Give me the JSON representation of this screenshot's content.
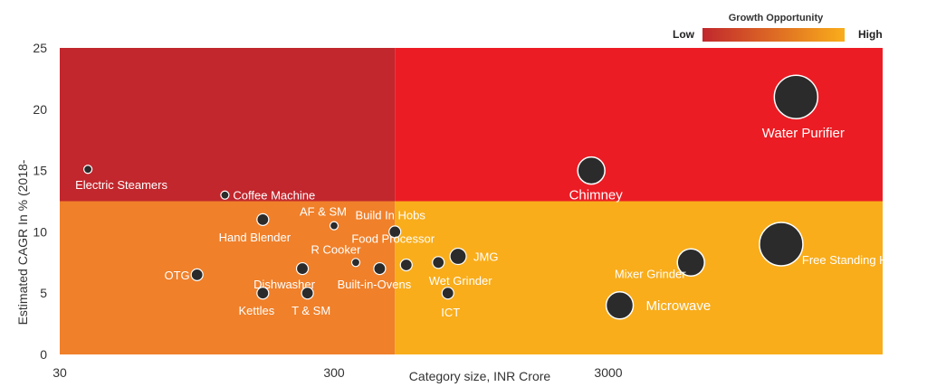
{
  "chart_data": {
    "type": "scatter",
    "xlabel": "Category size, INR Crore",
    "ylabel": "Estimated CAGR In % (2018-",
    "x_scale": "log",
    "xlim": [
      30,
      30000
    ],
    "ylim": [
      0,
      25
    ],
    "x_ticks": [
      30,
      300,
      3000
    ],
    "x_tick_labels": [
      "30",
      "300",
      "3000"
    ],
    "y_ticks": [
      0,
      5,
      10,
      15,
      20,
      25
    ],
    "quadrant_split": {
      "x": 500,
      "y": 12.5
    },
    "quadrant_colors": {
      "top_left": "#c1272d",
      "top_right": "#ec1c24",
      "bottom_left": "#f0802a",
      "bottom_right": "#f9ad1b"
    },
    "legend": {
      "title": "Growth Opportunity",
      "low_label": "Low",
      "high_label": "High",
      "low_color": "#c1272d",
      "high_color": "#f9ad1b",
      "position": "top-right"
    },
    "points": [
      {
        "label": "Electric Steamers",
        "x": 38,
        "y": 15.1,
        "size": "tiny"
      },
      {
        "label": "Coffee Machine",
        "x": 120,
        "y": 13.0,
        "size": "tiny"
      },
      {
        "label": "Hand Blender",
        "x": 165,
        "y": 11.0,
        "size": "small"
      },
      {
        "label": "AF & SM",
        "x": 300,
        "y": 10.5,
        "size": "tiny"
      },
      {
        "label": "Build In Hobs",
        "x": 500,
        "y": 10.0,
        "size": "small"
      },
      {
        "label": "R Cooker",
        "x": 360,
        "y": 7.5,
        "size": "tiny"
      },
      {
        "label": "Food Processor",
        "x": 720,
        "y": 7.5,
        "size": "small"
      },
      {
        "label": "OTG",
        "x": 95,
        "y": 6.5,
        "size": "small"
      },
      {
        "label": "Dishwasher",
        "x": 230,
        "y": 7.0,
        "size": "small"
      },
      {
        "label": "Built-in-Ovens",
        "x": 440,
        "y": 7.0,
        "size": "small"
      },
      {
        "label": "Wet Grinder",
        "x": 550,
        "y": 7.3,
        "size": "small"
      },
      {
        "label": "Kettles",
        "x": 165,
        "y": 5.0,
        "size": "small"
      },
      {
        "label": "T & SM",
        "x": 240,
        "y": 5.0,
        "size": "small"
      },
      {
        "label": "ICT",
        "x": 780,
        "y": 5.0,
        "size": "small"
      },
      {
        "label": "JMG",
        "x": 850,
        "y": 8.0,
        "size": "medium"
      },
      {
        "label": "Water Purifier",
        "x": 14500,
        "y": 21.0,
        "size": "xlarge"
      },
      {
        "label": "Chimney",
        "x": 2600,
        "y": 15.0,
        "size": "large"
      },
      {
        "label": "Free Standing Hobs",
        "x": 12800,
        "y": 9.0,
        "size": "xlarge"
      },
      {
        "label": "Mixer Grinder",
        "x": 6000,
        "y": 7.5,
        "size": "large"
      },
      {
        "label": "Microwave",
        "x": 3300,
        "y": 4.0,
        "size": "large"
      }
    ]
  }
}
